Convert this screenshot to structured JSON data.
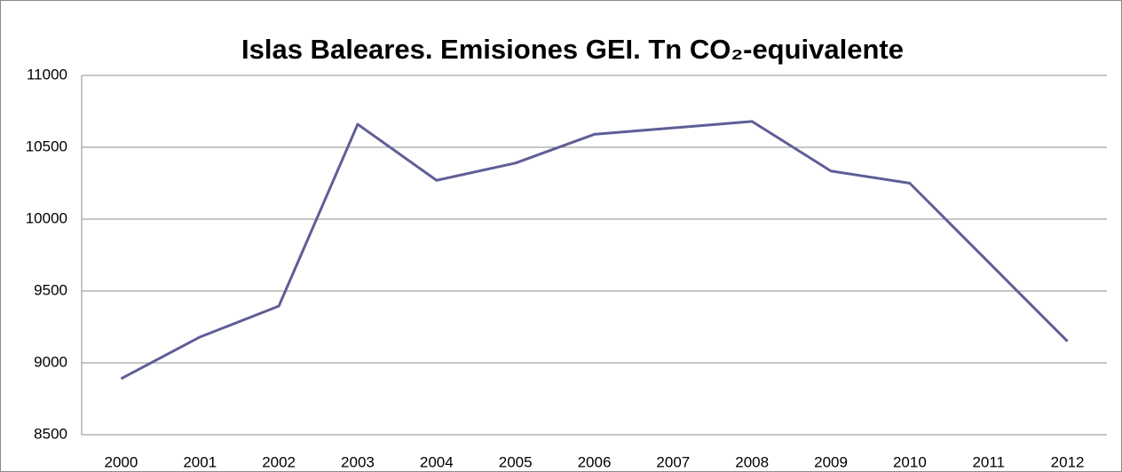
{
  "chart_data": {
    "type": "line",
    "title": "Islas Baleares. Emisiones GEI. Tn CO₂-equivalente",
    "categories": [
      "2000",
      "2001",
      "2002",
      "2003",
      "2004",
      "2005",
      "2006",
      "2007",
      "2008",
      "2009",
      "2010",
      "2011",
      "2012"
    ],
    "values": [
      8890,
      9180,
      9395,
      10660,
      10270,
      10390,
      10590,
      10635,
      10680,
      10335,
      10250,
      9700,
      9150
    ],
    "color": "#5f5e97",
    "ylim": [
      8500,
      11000
    ],
    "yticks": [
      8500,
      9000,
      9500,
      10000,
      10500,
      11000
    ],
    "grid": true
  }
}
